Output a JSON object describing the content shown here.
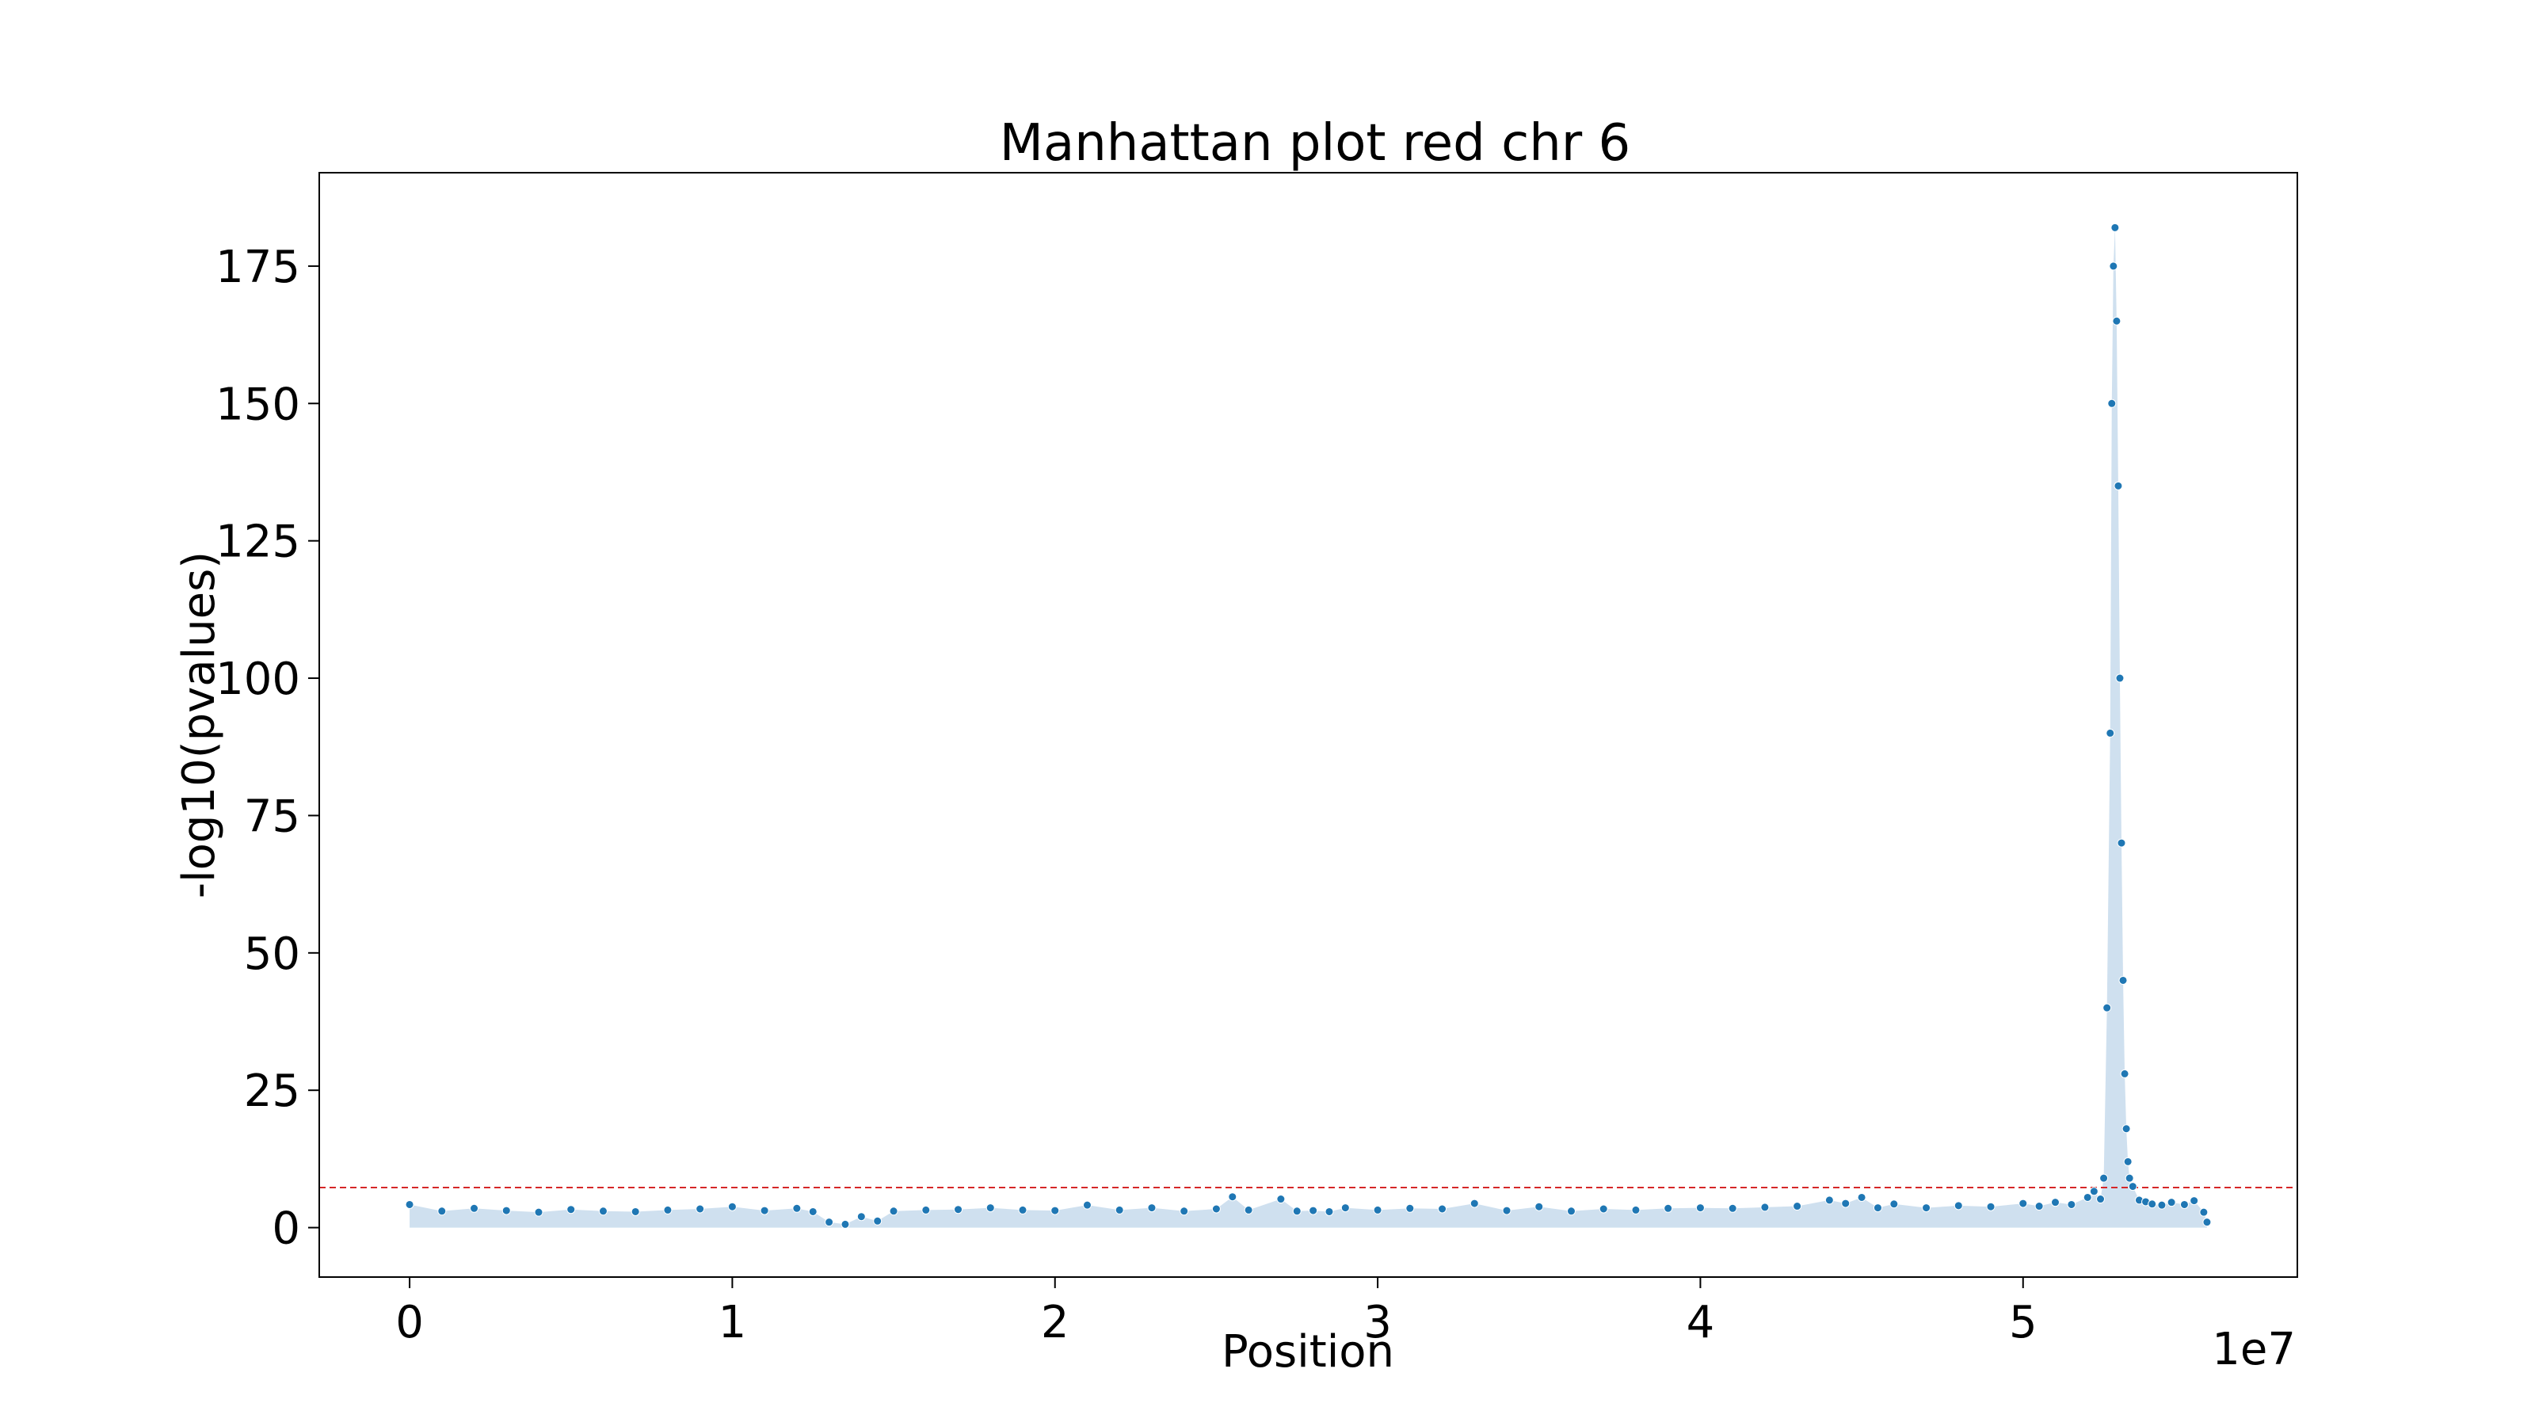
{
  "chart_data": {
    "type": "scatter",
    "title": "Manhattan plot red chr 6",
    "xlabel": "Position",
    "ylabel": "-log10(pvalues)",
    "x_offset_text": "1e7",
    "xlim": [
      -2800000,
      58500000
    ],
    "ylim": [
      -9,
      192
    ],
    "xticks": [
      0,
      1,
      2,
      3,
      4,
      5
    ],
    "xtick_labels": [
      "0",
      "1",
      "2",
      "3",
      "4",
      "5"
    ],
    "yticks": [
      0,
      25,
      50,
      75,
      100,
      125,
      150,
      175
    ],
    "ytick_labels": [
      "0",
      "25",
      "50",
      "75",
      "100",
      "125",
      "150",
      "175"
    ],
    "threshold": 7.3,
    "colors": {
      "points": "#1f77b4",
      "fill": "#cfe0ef",
      "threshold": "#d62728",
      "axes": "#000000"
    },
    "series": [
      {
        "x": [
          0,
          1000000,
          2000000,
          3000000,
          4000000,
          5000000,
          6000000,
          7000000,
          8000000,
          9000000,
          10000000,
          11000000,
          12000000,
          12500000,
          13000000,
          13500000,
          14000000,
          14500000,
          15000000,
          16000000,
          17000000,
          18000000,
          19000000,
          20000000,
          21000000,
          22000000,
          23000000,
          24000000,
          25000000,
          25500000,
          26000000,
          27000000,
          27500000,
          28000000,
          28500000,
          29000000,
          30000000,
          31000000,
          32000000,
          33000000,
          34000000,
          35000000,
          36000000,
          37000000,
          38000000,
          39000000,
          40000000,
          41000000,
          42000000,
          43000000,
          44000000,
          44500000,
          45000000,
          45500000,
          46000000,
          47000000,
          48000000,
          49000000,
          50000000,
          50500000,
          51000000,
          51500000,
          52000000,
          52200000,
          52400000,
          52500000,
          52600000,
          52700000,
          52750000,
          52800000,
          52850000,
          52900000,
          52950000,
          53000000,
          53050000,
          53100000,
          53150000,
          53200000,
          53250000,
          53300000,
          53400000,
          53600000,
          53800000,
          54000000,
          54300000,
          54600000,
          55000000,
          55300000,
          55600000,
          55700000
        ],
        "y": [
          4.2,
          3.0,
          3.5,
          3.1,
          2.8,
          3.3,
          3.0,
          2.9,
          3.2,
          3.4,
          3.8,
          3.1,
          3.5,
          2.9,
          1.0,
          0.6,
          2.0,
          1.2,
          3.0,
          3.2,
          3.3,
          3.6,
          3.2,
          3.1,
          4.1,
          3.2,
          3.6,
          3.0,
          3.4,
          5.6,
          3.2,
          5.2,
          3.0,
          3.1,
          2.9,
          3.6,
          3.2,
          3.5,
          3.4,
          4.4,
          3.1,
          3.8,
          3.0,
          3.4,
          3.2,
          3.5,
          3.6,
          3.5,
          3.7,
          3.9,
          5.0,
          4.4,
          5.5,
          3.6,
          4.3,
          3.6,
          4.0,
          3.8,
          4.4,
          3.9,
          4.6,
          4.2,
          5.5,
          6.6,
          5.2,
          9.0,
          40,
          90,
          150,
          175,
          182,
          165,
          135,
          100,
          70,
          45,
          28,
          18,
          12,
          9,
          7.5,
          5.0,
          4.7,
          4.3,
          4.1,
          4.6,
          4.2,
          4.9,
          2.8,
          1.0
        ]
      }
    ]
  }
}
